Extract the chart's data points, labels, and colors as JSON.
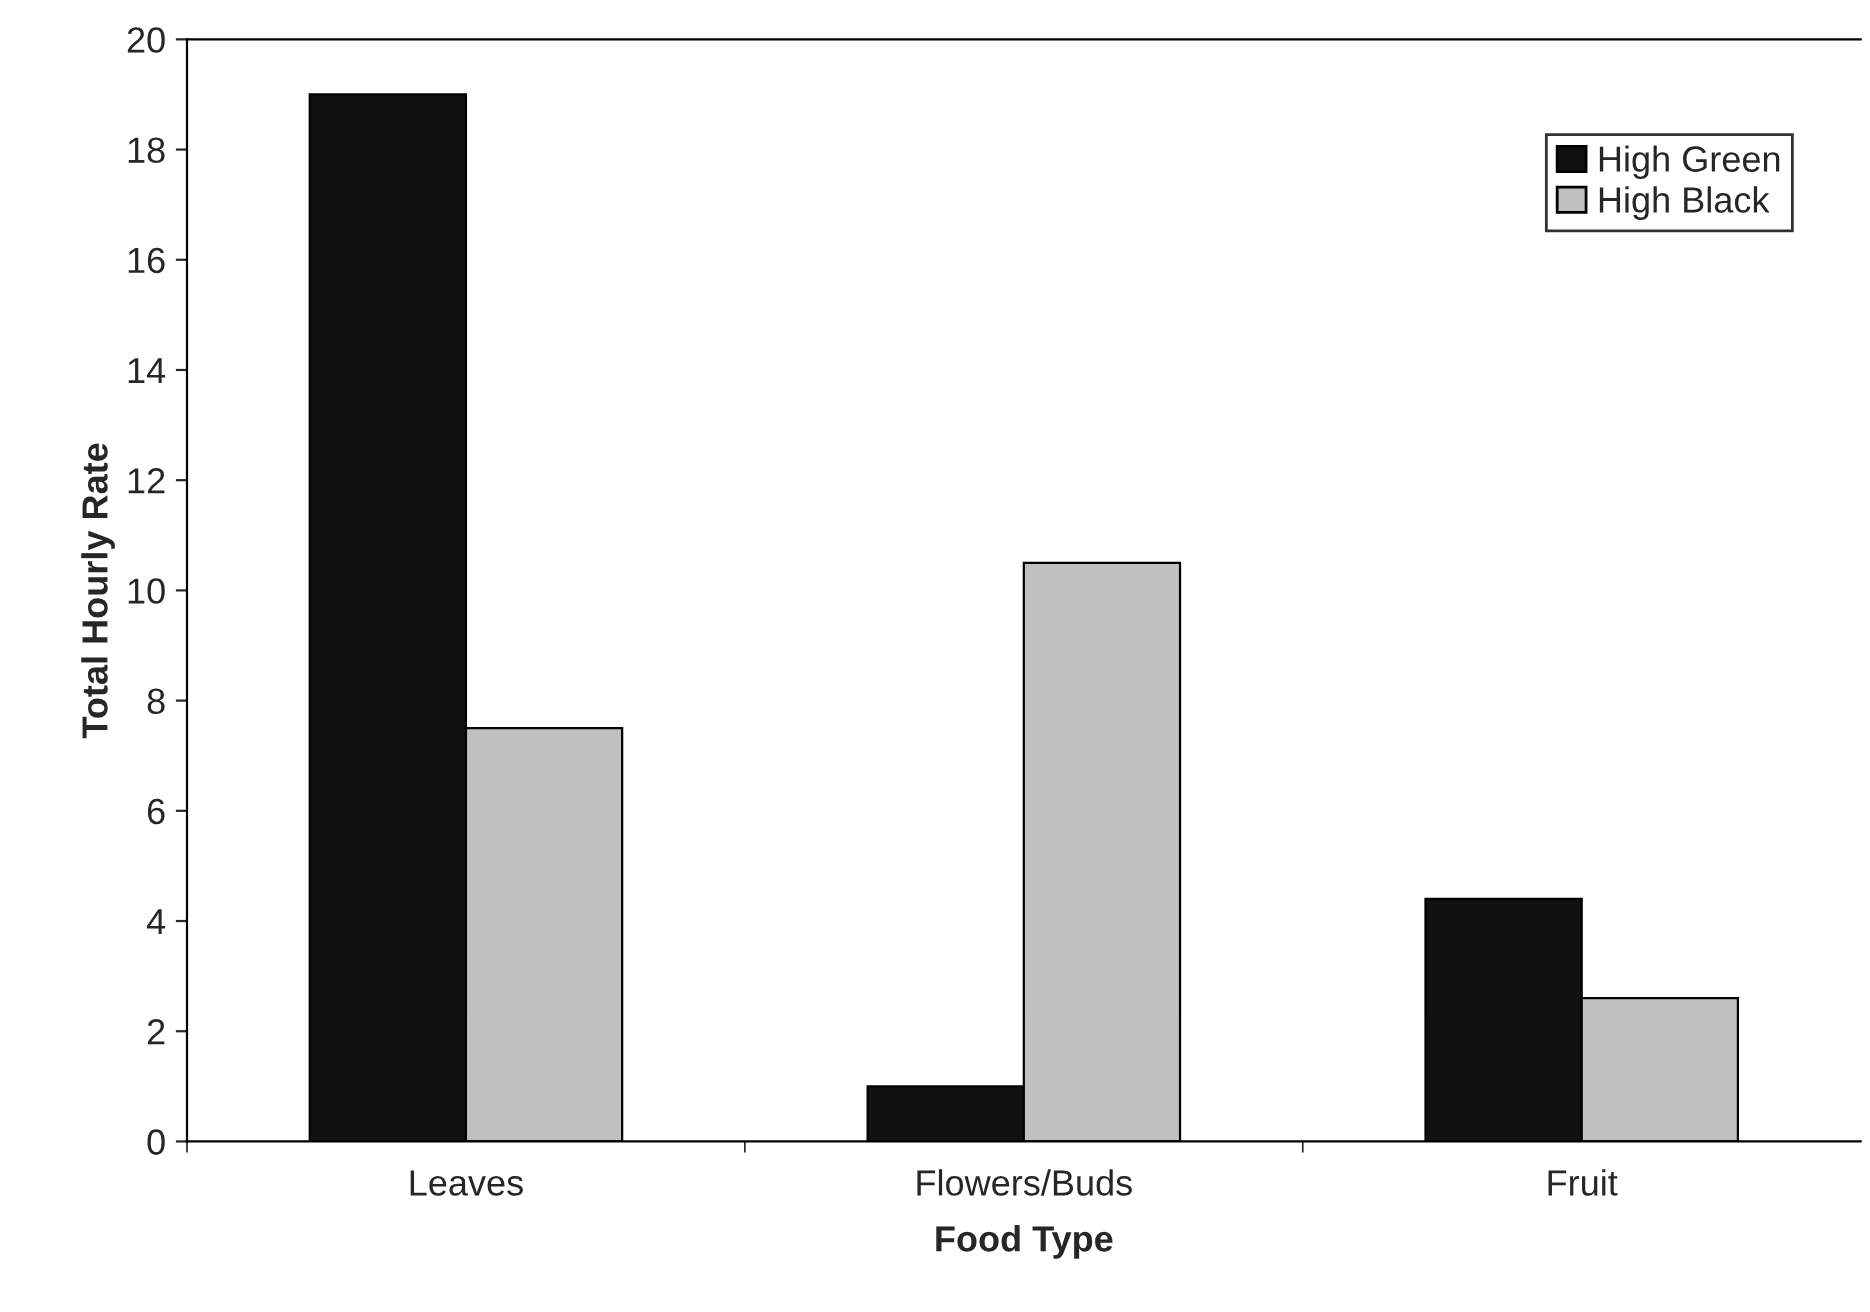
{
  "chart_data": {
    "type": "bar",
    "xlabel": "Food Type",
    "ylabel": "Total Hourly Rate",
    "categories": [
      "Leaves",
      "Flowers/Buds",
      "Fruit"
    ],
    "series": [
      {
        "name": "High Green",
        "color": "#111111",
        "values": [
          19,
          1,
          4.4
        ]
      },
      {
        "name": "High Black",
        "color": "#c0c0c0",
        "values": [
          7.5,
          10.5,
          2.6
        ]
      }
    ],
    "ylim": [
      0,
      20
    ],
    "yticks": [
      0,
      2,
      4,
      6,
      8,
      10,
      12,
      14,
      16,
      18,
      20
    ],
    "grid": false,
    "legend": "top right"
  }
}
